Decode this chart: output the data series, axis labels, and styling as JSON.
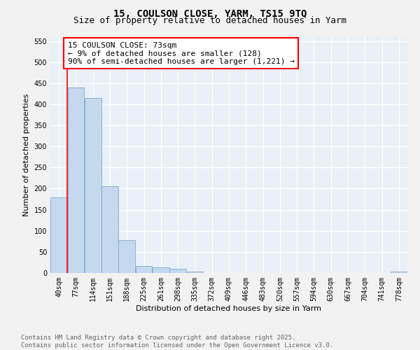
{
  "title_line1": "15, COULSON CLOSE, YARM, TS15 9TQ",
  "title_line2": "Size of property relative to detached houses in Yarm",
  "xlabel": "Distribution of detached houses by size in Yarm",
  "ylabel": "Number of detached properties",
  "bar_color": "#c5d8ee",
  "bar_edge_color": "#7aadd4",
  "bar_width": 0.98,
  "categories": [
    "40sqm",
    "77sqm",
    "114sqm",
    "151sqm",
    "188sqm",
    "225sqm",
    "261sqm",
    "298sqm",
    "335sqm",
    "372sqm",
    "409sqm",
    "446sqm",
    "483sqm",
    "520sqm",
    "557sqm",
    "594sqm",
    "630sqm",
    "667sqm",
    "704sqm",
    "741sqm",
    "778sqm"
  ],
  "values": [
    180,
    440,
    415,
    205,
    78,
    16,
    13,
    10,
    4,
    0,
    0,
    0,
    0,
    0,
    0,
    0,
    0,
    0,
    0,
    0,
    4
  ],
  "ylim": [
    0,
    560
  ],
  "yticks": [
    0,
    50,
    100,
    150,
    200,
    250,
    300,
    350,
    400,
    450,
    500,
    550
  ],
  "red_line_x": 0.5,
  "annotation_title": "15 COULSON CLOSE: 73sqm",
  "annotation_line2": "← 9% of detached houses are smaller (128)",
  "annotation_line3": "90% of semi-detached houses are larger (1,221) →",
  "footer_line1": "Contains HM Land Registry data © Crown copyright and database right 2025.",
  "footer_line2": "Contains public sector information licensed under the Open Government Licence v3.0.",
  "bg_color": "#eaf0f8",
  "grid_color": "#ffffff",
  "fig_bg_color": "#f2f2f2",
  "title_fontsize": 10,
  "subtitle_fontsize": 9,
  "tick_fontsize": 7,
  "ylabel_fontsize": 8,
  "xlabel_fontsize": 8,
  "footer_fontsize": 6.5,
  "annotation_fontsize": 8
}
